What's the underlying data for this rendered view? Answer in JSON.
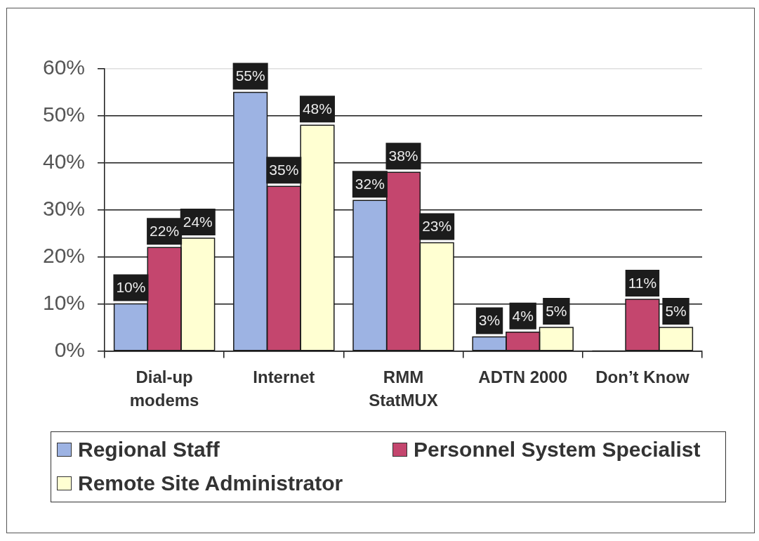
{
  "chart_data": {
    "type": "bar",
    "categories": [
      "Dial-up\nmodems",
      "Internet",
      "RMM\nStatMUX",
      "ADTN 2000",
      "Don’t Know"
    ],
    "series": [
      {
        "name": "Regional Staff",
        "color": "#9db3e3",
        "values": [
          10,
          55,
          32,
          3,
          null
        ],
        "value_labels": [
          "10%",
          "55%",
          "32%",
          "3%",
          null
        ]
      },
      {
        "name": "Personnel System Specialist",
        "color": "#c4466e",
        "values": [
          22,
          35,
          38,
          4,
          11
        ],
        "value_labels": [
          "22%",
          "35%",
          "38%",
          "4%",
          "11%"
        ]
      },
      {
        "name": "Remote Site Administrator",
        "color": "#ffffd2",
        "values": [
          24,
          48,
          23,
          5,
          5
        ],
        "value_labels": [
          "24%",
          "48%",
          "23%",
          "5%",
          "5%"
        ]
      }
    ],
    "ylim": [
      0,
      60
    ],
    "yticks": [
      {
        "value": 0,
        "label": "0%"
      },
      {
        "value": 10,
        "label": "10%"
      },
      {
        "value": 20,
        "label": "20%"
      },
      {
        "value": 30,
        "label": "30%"
      },
      {
        "value": 40,
        "label": "40%"
      },
      {
        "value": 50,
        "label": "50%"
      },
      {
        "value": 60,
        "label": "60%"
      }
    ],
    "grid": "y",
    "legend": "bottom"
  }
}
